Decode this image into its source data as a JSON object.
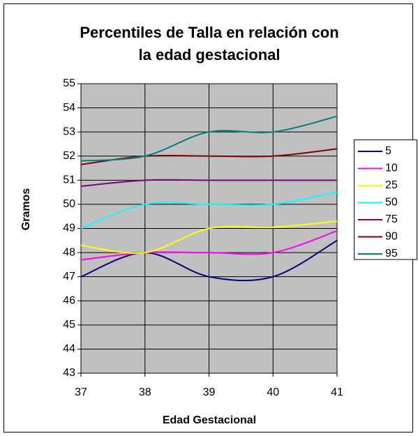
{
  "chart_data": {
    "type": "line",
    "title": [
      "Percentiles de Talla en relación con",
      "la edad gestacional"
    ],
    "x_label": "Edad Gestacional",
    "y_label": "Gramos",
    "x": [
      37,
      38,
      39,
      40,
      41
    ],
    "xlim": [
      37,
      41
    ],
    "xticks": [
      37,
      38,
      39,
      40,
      41
    ],
    "ylim": [
      43,
      55
    ],
    "yticks": [
      43,
      44,
      45,
      46,
      47,
      48,
      49,
      50,
      51,
      52,
      53,
      54,
      55
    ],
    "grid": true,
    "smooth": true,
    "legend": "right",
    "series": [
      {
        "name": "5",
        "color": "#000080",
        "values": [
          47.0,
          48.0,
          47.0,
          47.0,
          48.5
        ]
      },
      {
        "name": "10",
        "color": "#ff00ff",
        "values": [
          47.7,
          48.0,
          48.0,
          48.0,
          48.9
        ]
      },
      {
        "name": "25",
        "color": "#ffff00",
        "values": [
          48.3,
          48.0,
          49.0,
          49.05,
          49.3
        ]
      },
      {
        "name": "50",
        "color": "#00ffff",
        "values": [
          49.0,
          50.0,
          50.0,
          50.0,
          50.5
        ]
      },
      {
        "name": "75",
        "color": "#800080",
        "values": [
          50.75,
          51.0,
          51.0,
          51.0,
          51.0
        ]
      },
      {
        "name": "90",
        "color": "#800000",
        "values": [
          51.65,
          52.0,
          52.0,
          52.0,
          52.3
        ]
      },
      {
        "name": "95",
        "color": "#008080",
        "values": [
          51.8,
          52.0,
          53.0,
          53.0,
          53.65
        ]
      }
    ]
  }
}
